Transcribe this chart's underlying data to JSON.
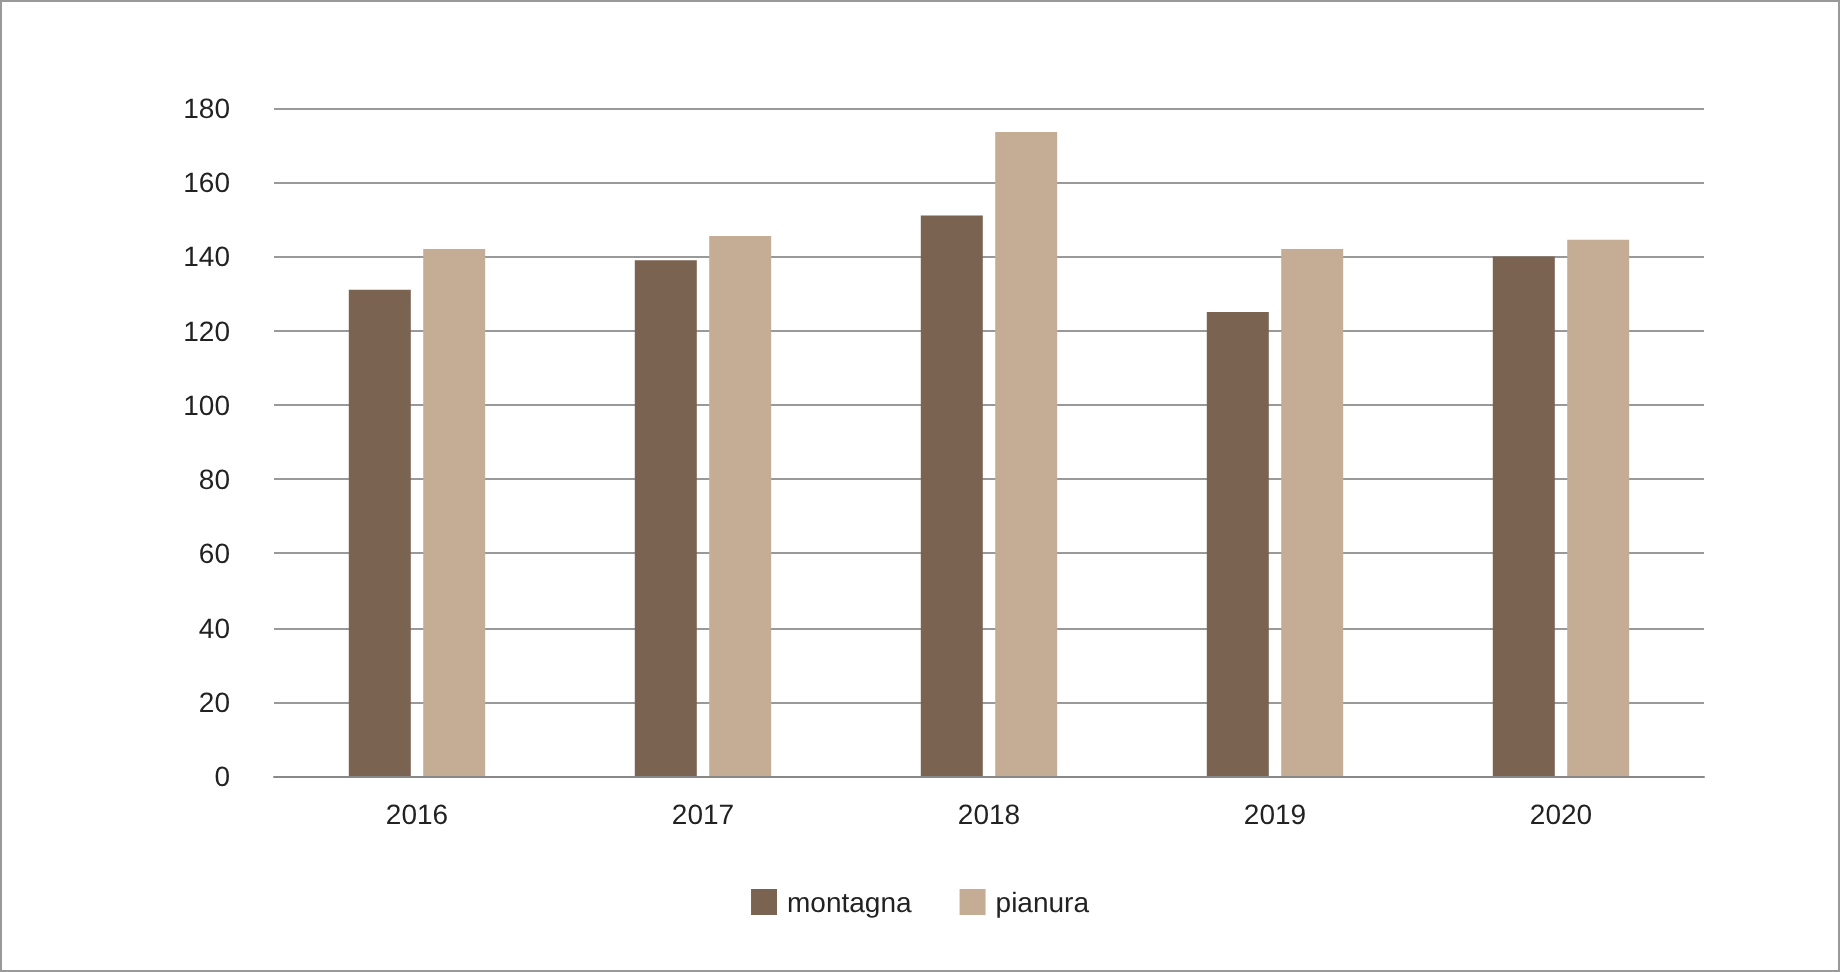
{
  "chart_data": {
    "type": "bar",
    "categories": [
      "2016",
      "2017",
      "2018",
      "2019",
      "2020"
    ],
    "series": [
      {
        "name": "montagna",
        "color": "#7b6352",
        "values": [
          131,
          139,
          151,
          125,
          140
        ]
      },
      {
        "name": "pianura",
        "color": "#c5ad95",
        "values": [
          142,
          145.5,
          173.5,
          142,
          144.5
        ]
      }
    ],
    "ylim": [
      0,
      180
    ],
    "yticks": [
      0,
      20,
      40,
      60,
      80,
      100,
      120,
      140,
      160,
      180
    ],
    "grid": "y",
    "legend": "bottom"
  }
}
